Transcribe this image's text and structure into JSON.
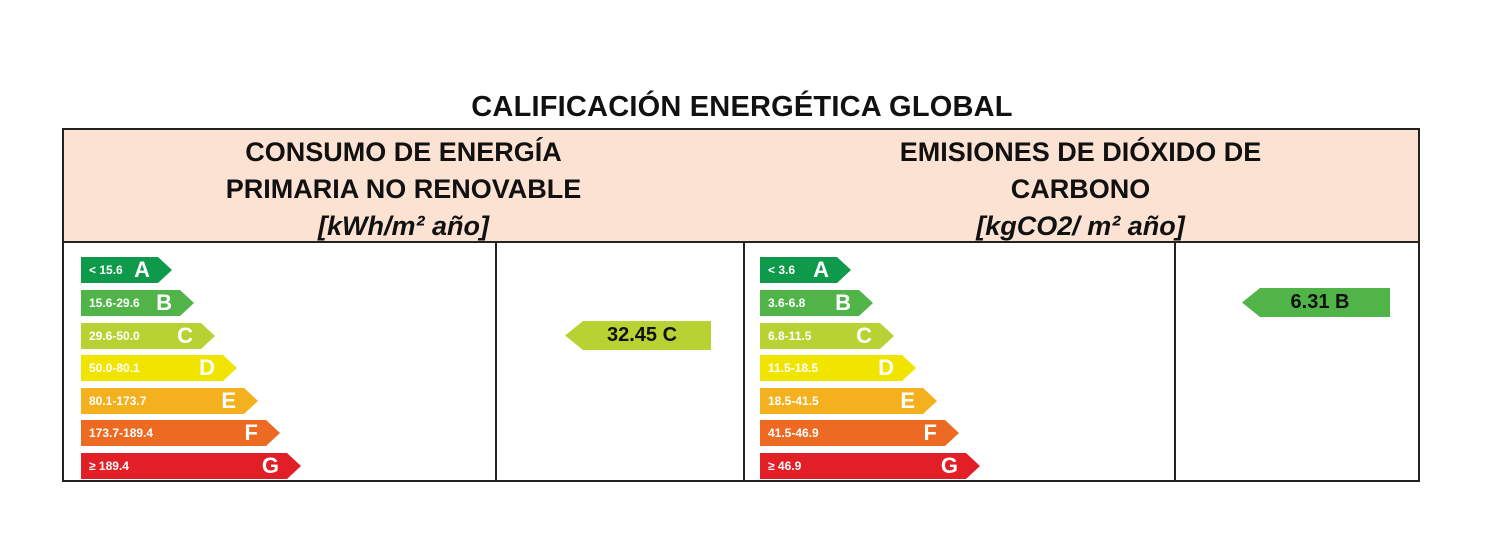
{
  "title": "CALIFICACIÓN ENERGÉTICA GLOBAL",
  "colors": {
    "header_bg": "#fbe2d2",
    "class_A": "#0e9a4a",
    "class_B": "#50b448",
    "class_C": "#b9d233",
    "class_D": "#f1e500",
    "class_E": "#f4b01e",
    "class_F": "#ec6a22",
    "class_G": "#e21f27"
  },
  "energy": {
    "header_line1": "CONSUMO DE ENERGÍA",
    "header_line2": "PRIMARIA NO RENOVABLE",
    "unit": "[kWh/m² año]",
    "classes": [
      {
        "range": "< 15.6",
        "letter": "A"
      },
      {
        "range": "15.6-29.6",
        "letter": "B"
      },
      {
        "range": "29.6-50.0",
        "letter": "C"
      },
      {
        "range": "50.0-80.1",
        "letter": "D"
      },
      {
        "range": "80.1-173.7",
        "letter": "E"
      },
      {
        "range": "173.7-189.4",
        "letter": "F"
      },
      {
        "range": "≥ 189.4",
        "letter": "G"
      }
    ],
    "rating": {
      "value": "32.45",
      "letter": "C",
      "display": "32.45 C"
    }
  },
  "co2": {
    "header_line1": "EMISIONES DE DIÓXIDO DE",
    "header_line2": "CARBONO",
    "unit": "[kgCO2/ m² año]",
    "classes": [
      {
        "range": "< 3.6",
        "letter": "A"
      },
      {
        "range": "3.6-6.8",
        "letter": "B"
      },
      {
        "range": "6.8-11.5",
        "letter": "C"
      },
      {
        "range": "11.5-18.5",
        "letter": "D"
      },
      {
        "range": "18.5-41.5",
        "letter": "E"
      },
      {
        "range": "41.5-46.9",
        "letter": "F"
      },
      {
        "range": "≥ 46.9",
        "letter": "G"
      }
    ],
    "rating": {
      "value": "6.31",
      "letter": "B",
      "display": "6.31 B"
    }
  }
}
